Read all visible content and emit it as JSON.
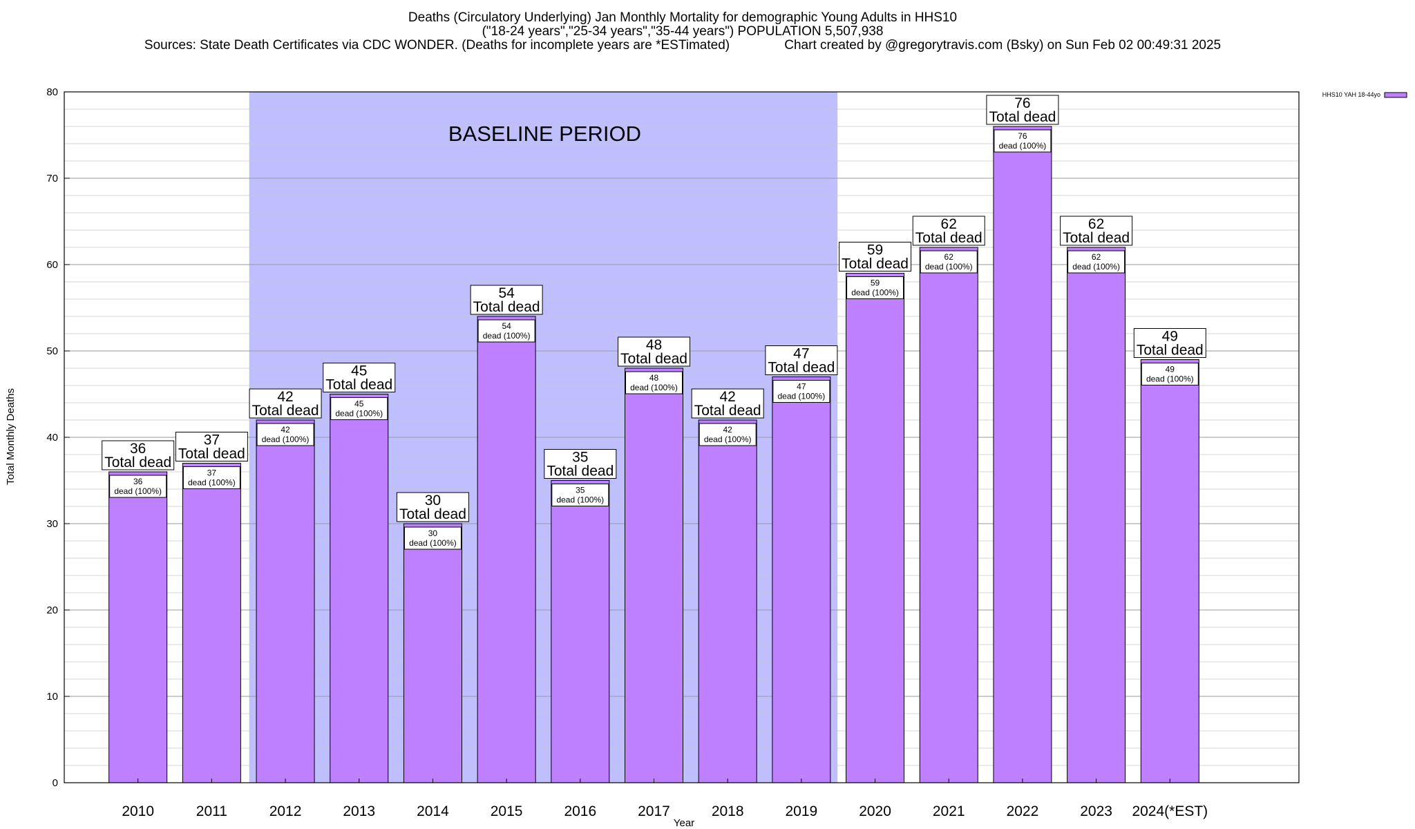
{
  "chart_data": {
    "type": "bar",
    "title_lines": [
      "Deaths (Circulatory Underlying) Jan Monthly Mortality for demographic Young Adults in HHS10",
      "(\"18-24 years\",\"25-34 years\",\"35-44 years\") POPULATION 5,507,938",
      "Sources: State Death Certificates via CDC WONDER. (Deaths for incomplete years are *ESTimated)               Chart created by @gregorytravis.com (Bsky) on Sun Feb 02 00:49:31 2025"
    ],
    "xlabel": "Year",
    "ylabel": "Total Monthly Deaths",
    "ylim": [
      0,
      80
    ],
    "yticks": [
      "0",
      "10",
      "20",
      "30",
      "40",
      "50",
      "60",
      "70",
      "80"
    ],
    "categories": [
      "2010",
      "2011",
      "2012",
      "2013",
      "2014",
      "2015",
      "2016",
      "2017",
      "2018",
      "2019",
      "2020",
      "2021",
      "2022",
      "2023",
      "2024(*EST)"
    ],
    "series": [
      {
        "name": "HHS10 YAH 18-44yo",
        "values": [
          36,
          37,
          42,
          45,
          30,
          54,
          35,
          48,
          42,
          47,
          59,
          62,
          76,
          62,
          49
        ],
        "color": "#bf80ff"
      }
    ],
    "baseline_label": "BASELINE PERIOD",
    "baseline_range": [
      "2012",
      "2019"
    ],
    "baseline_color": "#bfbfff",
    "total_label": "Total dead",
    "inner_label": "dead (100%)",
    "grid": true,
    "legend_position": "top-right"
  }
}
